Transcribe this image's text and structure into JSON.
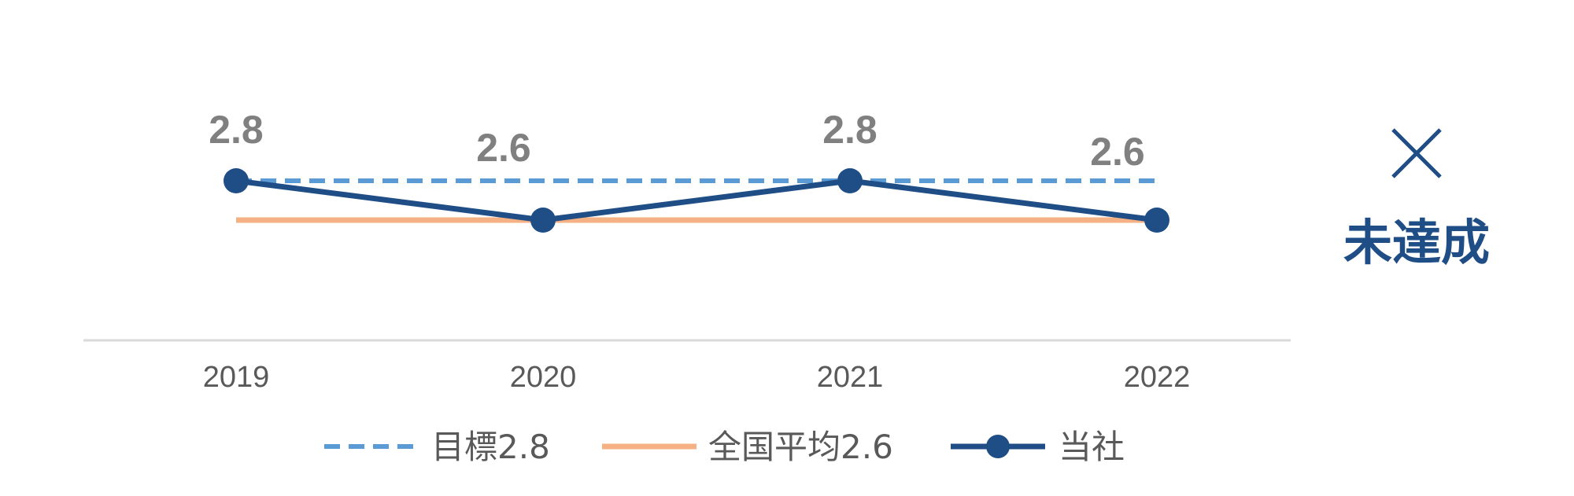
{
  "colors": {
    "company": "#1F4E87",
    "target": "#5B9BD5",
    "national": "#F4B183",
    "label": "#808080",
    "axis_text": "#595959",
    "axis_line": "#D9D9D9"
  },
  "chart_data": {
    "type": "line",
    "categories": [
      "2019",
      "2020",
      "2021",
      "2022"
    ],
    "series": [
      {
        "name": "目標2.8",
        "values": [
          2.8,
          2.8,
          2.8,
          2.8
        ],
        "style": "dashed",
        "color": "#5B9BD5"
      },
      {
        "name": "全国平均2.6",
        "values": [
          2.6,
          2.6,
          2.6,
          2.6
        ],
        "style": "solid",
        "color": "#F4B183"
      },
      {
        "name": "当社",
        "values": [
          2.8,
          2.6,
          2.8,
          2.6
        ],
        "style": "solid-markers",
        "color": "#1F4E87"
      }
    ],
    "data_labels": [
      "2.8",
      "2.6",
      "2.8",
      "2.6"
    ],
    "legend_position": "bottom",
    "grid": false
  },
  "status": {
    "mark": "×",
    "label": "未達成",
    "icon": "cross-icon"
  }
}
